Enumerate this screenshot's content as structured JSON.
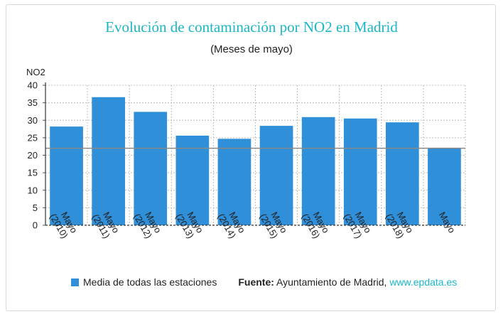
{
  "chart_data": {
    "type": "bar",
    "title": "Evolución de contaminación por NO2 en Madrid",
    "subtitle": "(Meses de mayo)",
    "ylabel": "NO2",
    "ylim": [
      0,
      40
    ],
    "yticks": [
      0,
      5,
      10,
      15,
      20,
      25,
      30,
      35,
      40
    ],
    "grid": true,
    "categories": [
      [
        "Mayo",
        "(2010)"
      ],
      [
        "Mayo",
        "(2011)"
      ],
      [
        "Mayo",
        "(2012)"
      ],
      [
        "Mayo",
        "(2013)"
      ],
      [
        "Mayo",
        "(2014)"
      ],
      [
        "Mayo",
        "(2015)"
      ],
      [
        "Mayo",
        "(2016)"
      ],
      [
        "Mayo",
        "(2017)"
      ],
      [
        "Mayo",
        "(2018)"
      ],
      [
        "Mayo"
      ]
    ],
    "series": [
      {
        "name": "Media de todas las estaciones",
        "values": [
          28.2,
          36.6,
          32.4,
          25.6,
          24.7,
          28.4,
          30.9,
          30.5,
          29.4,
          22.0
        ],
        "color": "#2f8fd8"
      }
    ],
    "reference_line": {
      "value": 22.0,
      "color": "#8a8a8a"
    },
    "legend_position": "bottom-left"
  },
  "footer": {
    "source_label": "Fuente:",
    "source_text": " Ayuntamiento de Madrid, ",
    "source_link": "www.epdata.es"
  }
}
